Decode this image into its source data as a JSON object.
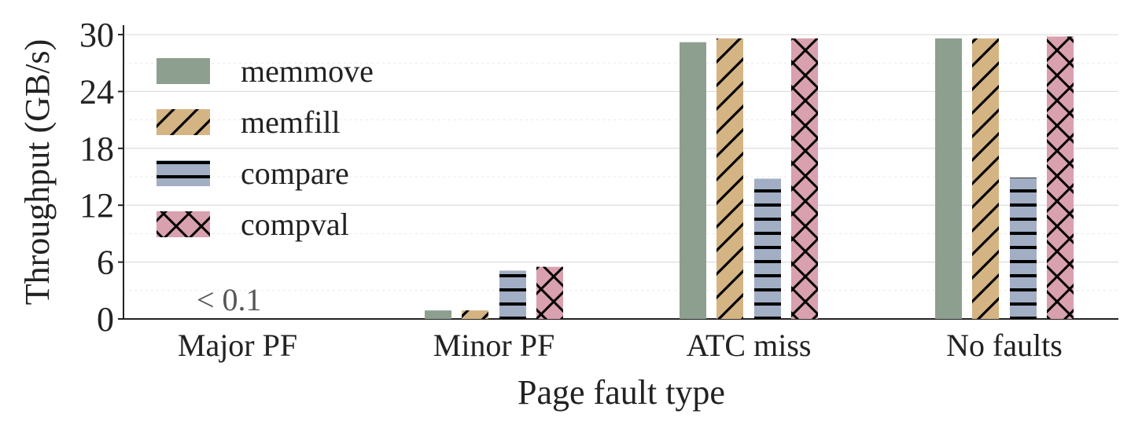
{
  "chart_data": {
    "type": "bar",
    "title": "",
    "xlabel": "Page fault type",
    "ylabel": "Throughput (GB/s)",
    "categories": [
      "Major PF",
      "Minor PF",
      "ATC miss",
      "No faults"
    ],
    "ylim": [
      0,
      31
    ],
    "yticks": [
      "0",
      "6",
      "12",
      "18",
      "24",
      "30"
    ],
    "ytick_values": [
      0,
      6,
      12,
      18,
      24,
      30
    ],
    "grid": true,
    "legend_position": "top-left",
    "annotation": "< 0.1",
    "series": [
      {
        "name": "memmove",
        "color": "#8da08f",
        "hatch": "none",
        "values": [
          0.0,
          0.9,
          29.2,
          29.6
        ]
      },
      {
        "name": "memfill",
        "color": "#d4b483",
        "hatch": "diagonal",
        "values": [
          0.0,
          0.9,
          29.6,
          29.6
        ]
      },
      {
        "name": "compare",
        "color": "#a2aec4",
        "hatch": "horizontal",
        "values": [
          0.0,
          5.1,
          14.8,
          14.9
        ]
      },
      {
        "name": "compval",
        "color": "#d9a0ae",
        "hatch": "crosshatch",
        "values": [
          0.0,
          5.5,
          29.6,
          29.8
        ]
      }
    ]
  }
}
